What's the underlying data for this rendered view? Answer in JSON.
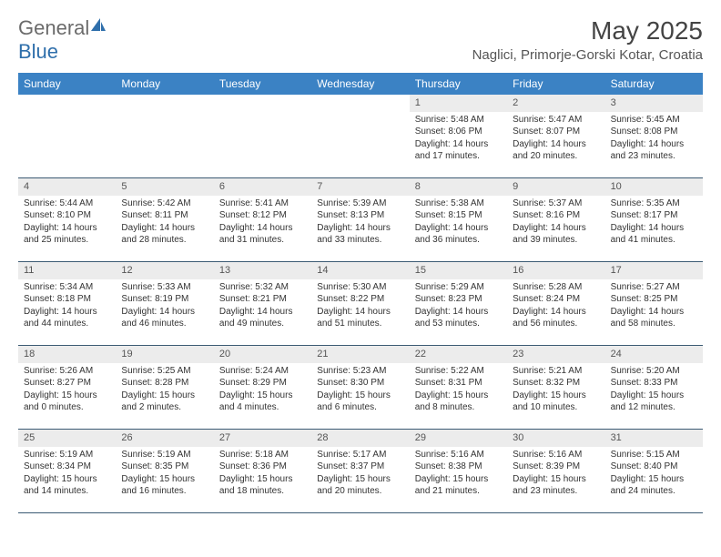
{
  "logo": {
    "text1": "General",
    "text2": "Blue"
  },
  "title": "May 2025",
  "location": "Naglici, Primorje-Gorski Kotar, Croatia",
  "colors": {
    "header_bg": "#3b82c4",
    "header_text": "#ffffff",
    "daynum_bg": "#ececec",
    "border": "#3b5a73",
    "logo_gray": "#6b6b6b",
    "logo_blue": "#2f6fab"
  },
  "day_names": [
    "Sunday",
    "Monday",
    "Tuesday",
    "Wednesday",
    "Thursday",
    "Friday",
    "Saturday"
  ],
  "cells": [
    {
      "n": "",
      "e": true
    },
    {
      "n": "",
      "e": true
    },
    {
      "n": "",
      "e": true
    },
    {
      "n": "",
      "e": true
    },
    {
      "n": "1",
      "sr": "Sunrise: 5:48 AM",
      "ss": "Sunset: 8:06 PM",
      "dl": "Daylight: 14 hours and 17 minutes."
    },
    {
      "n": "2",
      "sr": "Sunrise: 5:47 AM",
      "ss": "Sunset: 8:07 PM",
      "dl": "Daylight: 14 hours and 20 minutes."
    },
    {
      "n": "3",
      "sr": "Sunrise: 5:45 AM",
      "ss": "Sunset: 8:08 PM",
      "dl": "Daylight: 14 hours and 23 minutes."
    },
    {
      "n": "4",
      "sr": "Sunrise: 5:44 AM",
      "ss": "Sunset: 8:10 PM",
      "dl": "Daylight: 14 hours and 25 minutes."
    },
    {
      "n": "5",
      "sr": "Sunrise: 5:42 AM",
      "ss": "Sunset: 8:11 PM",
      "dl": "Daylight: 14 hours and 28 minutes."
    },
    {
      "n": "6",
      "sr": "Sunrise: 5:41 AM",
      "ss": "Sunset: 8:12 PM",
      "dl": "Daylight: 14 hours and 31 minutes."
    },
    {
      "n": "7",
      "sr": "Sunrise: 5:39 AM",
      "ss": "Sunset: 8:13 PM",
      "dl": "Daylight: 14 hours and 33 minutes."
    },
    {
      "n": "8",
      "sr": "Sunrise: 5:38 AM",
      "ss": "Sunset: 8:15 PM",
      "dl": "Daylight: 14 hours and 36 minutes."
    },
    {
      "n": "9",
      "sr": "Sunrise: 5:37 AM",
      "ss": "Sunset: 8:16 PM",
      "dl": "Daylight: 14 hours and 39 minutes."
    },
    {
      "n": "10",
      "sr": "Sunrise: 5:35 AM",
      "ss": "Sunset: 8:17 PM",
      "dl": "Daylight: 14 hours and 41 minutes."
    },
    {
      "n": "11",
      "sr": "Sunrise: 5:34 AM",
      "ss": "Sunset: 8:18 PM",
      "dl": "Daylight: 14 hours and 44 minutes."
    },
    {
      "n": "12",
      "sr": "Sunrise: 5:33 AM",
      "ss": "Sunset: 8:19 PM",
      "dl": "Daylight: 14 hours and 46 minutes."
    },
    {
      "n": "13",
      "sr": "Sunrise: 5:32 AM",
      "ss": "Sunset: 8:21 PM",
      "dl": "Daylight: 14 hours and 49 minutes."
    },
    {
      "n": "14",
      "sr": "Sunrise: 5:30 AM",
      "ss": "Sunset: 8:22 PM",
      "dl": "Daylight: 14 hours and 51 minutes."
    },
    {
      "n": "15",
      "sr": "Sunrise: 5:29 AM",
      "ss": "Sunset: 8:23 PM",
      "dl": "Daylight: 14 hours and 53 minutes."
    },
    {
      "n": "16",
      "sr": "Sunrise: 5:28 AM",
      "ss": "Sunset: 8:24 PM",
      "dl": "Daylight: 14 hours and 56 minutes."
    },
    {
      "n": "17",
      "sr": "Sunrise: 5:27 AM",
      "ss": "Sunset: 8:25 PM",
      "dl": "Daylight: 14 hours and 58 minutes."
    },
    {
      "n": "18",
      "sr": "Sunrise: 5:26 AM",
      "ss": "Sunset: 8:27 PM",
      "dl": "Daylight: 15 hours and 0 minutes."
    },
    {
      "n": "19",
      "sr": "Sunrise: 5:25 AM",
      "ss": "Sunset: 8:28 PM",
      "dl": "Daylight: 15 hours and 2 minutes."
    },
    {
      "n": "20",
      "sr": "Sunrise: 5:24 AM",
      "ss": "Sunset: 8:29 PM",
      "dl": "Daylight: 15 hours and 4 minutes."
    },
    {
      "n": "21",
      "sr": "Sunrise: 5:23 AM",
      "ss": "Sunset: 8:30 PM",
      "dl": "Daylight: 15 hours and 6 minutes."
    },
    {
      "n": "22",
      "sr": "Sunrise: 5:22 AM",
      "ss": "Sunset: 8:31 PM",
      "dl": "Daylight: 15 hours and 8 minutes."
    },
    {
      "n": "23",
      "sr": "Sunrise: 5:21 AM",
      "ss": "Sunset: 8:32 PM",
      "dl": "Daylight: 15 hours and 10 minutes."
    },
    {
      "n": "24",
      "sr": "Sunrise: 5:20 AM",
      "ss": "Sunset: 8:33 PM",
      "dl": "Daylight: 15 hours and 12 minutes."
    },
    {
      "n": "25",
      "sr": "Sunrise: 5:19 AM",
      "ss": "Sunset: 8:34 PM",
      "dl": "Daylight: 15 hours and 14 minutes."
    },
    {
      "n": "26",
      "sr": "Sunrise: 5:19 AM",
      "ss": "Sunset: 8:35 PM",
      "dl": "Daylight: 15 hours and 16 minutes."
    },
    {
      "n": "27",
      "sr": "Sunrise: 5:18 AM",
      "ss": "Sunset: 8:36 PM",
      "dl": "Daylight: 15 hours and 18 minutes."
    },
    {
      "n": "28",
      "sr": "Sunrise: 5:17 AM",
      "ss": "Sunset: 8:37 PM",
      "dl": "Daylight: 15 hours and 20 minutes."
    },
    {
      "n": "29",
      "sr": "Sunrise: 5:16 AM",
      "ss": "Sunset: 8:38 PM",
      "dl": "Daylight: 15 hours and 21 minutes."
    },
    {
      "n": "30",
      "sr": "Sunrise: 5:16 AM",
      "ss": "Sunset: 8:39 PM",
      "dl": "Daylight: 15 hours and 23 minutes."
    },
    {
      "n": "31",
      "sr": "Sunrise: 5:15 AM",
      "ss": "Sunset: 8:40 PM",
      "dl": "Daylight: 15 hours and 24 minutes."
    }
  ]
}
